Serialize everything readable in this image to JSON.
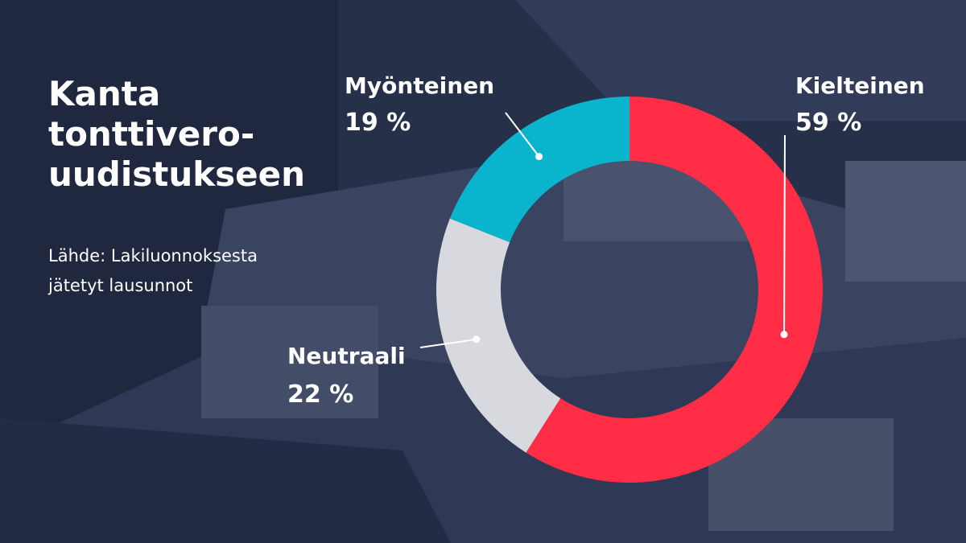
{
  "title_lines": [
    "Kanta",
    "tonttivero-",
    "uudistukseen"
  ],
  "source_lines": [
    "Lähde: Lakiluonnoksesta",
    "jätetyt lausunnot"
  ],
  "chart_data": {
    "type": "pie",
    "donut": true,
    "unit": "%",
    "slices": [
      {
        "label": "Kielteinen",
        "value": 59,
        "value_label": "59 %",
        "color": "#ff2d46"
      },
      {
        "label": "Neutraali",
        "value": 22,
        "value_label": "22 %",
        "color": "#d7d9df"
      },
      {
        "label": "Myönteinen",
        "value": 19,
        "value_label": "19 %",
        "color": "#0bb4cd"
      }
    ]
  },
  "colors": {
    "background": "#2a3350",
    "text": "#ffffff",
    "leader": "#ffffff"
  }
}
